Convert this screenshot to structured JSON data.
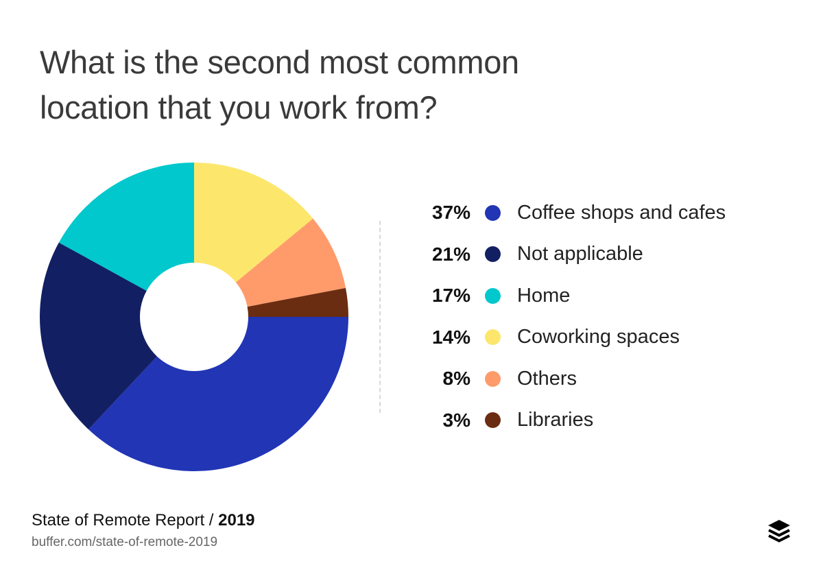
{
  "title_line1": "What is the second most common",
  "title_line2": "location that you work from?",
  "chart_data": {
    "type": "pie",
    "style": "donut",
    "start": "3 o'clock, clockwise",
    "legend_position": "right",
    "slices": [
      {
        "label": "Coffee shops and cafes",
        "value": 37,
        "display": "37%",
        "color": "#2135b5"
      },
      {
        "label": "Not applicable",
        "value": 21,
        "display": "21%",
        "color": "#131f63"
      },
      {
        "label": "Home",
        "value": 17,
        "display": "17%",
        "color": "#00c8cc"
      },
      {
        "label": "Coworking spaces",
        "value": 14,
        "display": "14%",
        "color": "#fce76c"
      },
      {
        "label": "Others",
        "value": 8,
        "display": "8%",
        "color": "#ff9b6b"
      },
      {
        "label": "Libraries",
        "value": 3,
        "display": "3%",
        "color": "#6b2d11"
      }
    ]
  },
  "footer": {
    "source": "State of Remote Report / ",
    "year": "2019",
    "url": "buffer.com/state-of-remote-2019",
    "logo_icon": "buffer-stack-icon"
  }
}
